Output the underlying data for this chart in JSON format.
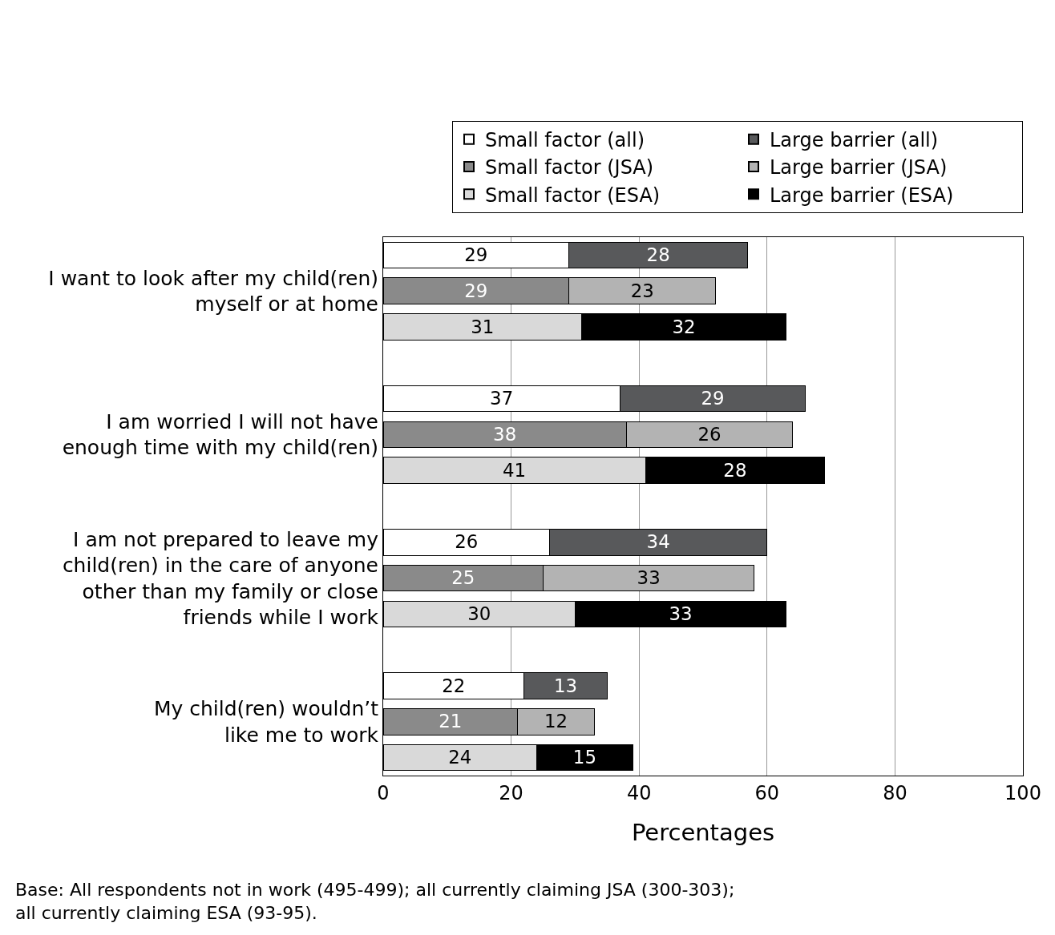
{
  "chart_data": {
    "type": "bar",
    "orientation": "horizontal",
    "stacked": true,
    "data_labels": true,
    "grid": "x",
    "legend": "top right",
    "categories": [
      null,
      "I want to look after my child(ren)\nmyself or at home",
      null,
      null,
      null,
      "I am worried I will not have\nenough time with my child(ren)",
      null,
      null,
      null,
      "I am not prepared to leave my\nchild(ren) in the care of anyone\nother than my family or close\nfriends while I work",
      null,
      null,
      null,
      "My child(ren) wouldn’t\nlike me to work",
      null
    ],
    "series": [
      {
        "name": "Small factor (all)",
        "color": "#ffffff",
        "values": [
          29,
          null,
          null,
          null,
          37,
          null,
          null,
          null,
          26,
          null,
          null,
          null,
          22,
          null,
          null
        ]
      },
      {
        "name": "Large barrier (all)",
        "color": "#58595b",
        "values": [
          28,
          null,
          null,
          null,
          29,
          null,
          null,
          null,
          34,
          null,
          null,
          null,
          13,
          null,
          null
        ]
      },
      {
        "name": "Small factor (JSA)",
        "color": "#8a8a8a",
        "values": [
          null,
          29,
          null,
          null,
          null,
          38,
          null,
          null,
          null,
          25,
          null,
          null,
          null,
          21,
          null
        ]
      },
      {
        "name": "Large barrier (JSA)",
        "color": "#b3b3b3",
        "values": [
          null,
          23,
          null,
          null,
          null,
          26,
          null,
          null,
          null,
          33,
          null,
          null,
          null,
          12,
          null
        ]
      },
      {
        "name": "Small factor (ESA)",
        "color": "#d9d9d9",
        "values": [
          null,
          null,
          31,
          null,
          null,
          null,
          41,
          null,
          null,
          null,
          30,
          null,
          null,
          null,
          24
        ]
      },
      {
        "name": "Large barrier (ESA)",
        "color": "#000000",
        "values": [
          null,
          null,
          32,
          null,
          null,
          null,
          28,
          null,
          null,
          null,
          33,
          null,
          null,
          null,
          15
        ]
      }
    ],
    "xlim": [
      0,
      100
    ],
    "xticks": [
      0,
      20,
      40,
      60,
      80,
      100
    ],
    "xlabel": "Percentages",
    "annotations": [
      "Base: All respondents not in work (495-499); all currently claiming JSA (300-303);\nall currently claiming ESA (93-95)."
    ]
  }
}
